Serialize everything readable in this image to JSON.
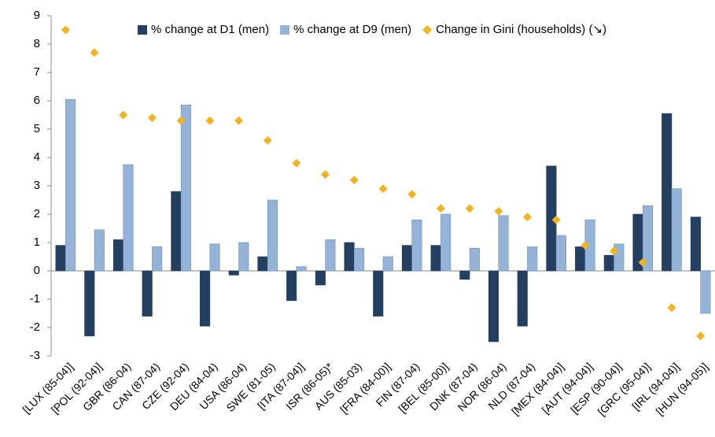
{
  "chart_data": {
    "type": "bar",
    "categories": [
      "[LUX (85-04)]",
      "[POL (92-04)]",
      "GBR (86-04)",
      "CAN (87-04)",
      "CZE (92-04)",
      "DEU (84-04)",
      "USA (86-04)",
      "SWE (81-05)",
      "[ITA (87-04)]",
      "ISR (86-05)*",
      "AUS (85-03)",
      "[FRA (84-00)]",
      "FIN (87-04)",
      "[BEL (85-00)]",
      "DNK (87-04)",
      "NOR (86-04)",
      "NLD (87-04)",
      "[MEX (84-04)]",
      "[AUT (94-04)]",
      "[ESP (90-04)]",
      "[GRC (95-04)]",
      "[IRL (94-04)]",
      "[HUN (94-05)]"
    ],
    "series": [
      {
        "name": "% change at D1 (men)",
        "color": "#243f60",
        "type": "bar",
        "values": [
          0.9,
          -2.3,
          1.1,
          -1.6,
          2.8,
          -1.95,
          -0.15,
          0.5,
          -1.05,
          -0.5,
          1.0,
          -1.6,
          0.9,
          0.9,
          -0.3,
          -2.5,
          -1.95,
          3.7,
          0.85,
          0.55,
          2.0,
          5.55,
          1.9
        ]
      },
      {
        "name": "% change at D9 (men)",
        "color": "#95b3d7",
        "type": "bar",
        "values": [
          6.05,
          1.45,
          3.75,
          0.85,
          5.85,
          0.95,
          1.0,
          2.5,
          0.15,
          1.1,
          0.8,
          0.5,
          1.8,
          2.0,
          0.8,
          1.95,
          0.85,
          1.25,
          1.8,
          0.95,
          2.3,
          2.9,
          -1.5
        ]
      },
      {
        "name": "Change in Gini (households) (↘)",
        "color": "#f0b323",
        "type": "scatter",
        "values": [
          8.5,
          7.7,
          5.5,
          5.4,
          5.3,
          5.3,
          5.3,
          4.6,
          3.8,
          3.4,
          3.2,
          2.9,
          2.7,
          2.2,
          2.2,
          2.1,
          1.9,
          1.8,
          0.9,
          0.7,
          0.3,
          -1.3,
          -2.3
        ]
      }
    ],
    "ylim": [
      -3,
      9
    ],
    "yticks": [
      -3,
      -2,
      -1,
      0,
      1,
      2,
      3,
      4,
      5,
      6,
      7,
      8,
      9
    ],
    "grid": false,
    "legend": "top"
  }
}
